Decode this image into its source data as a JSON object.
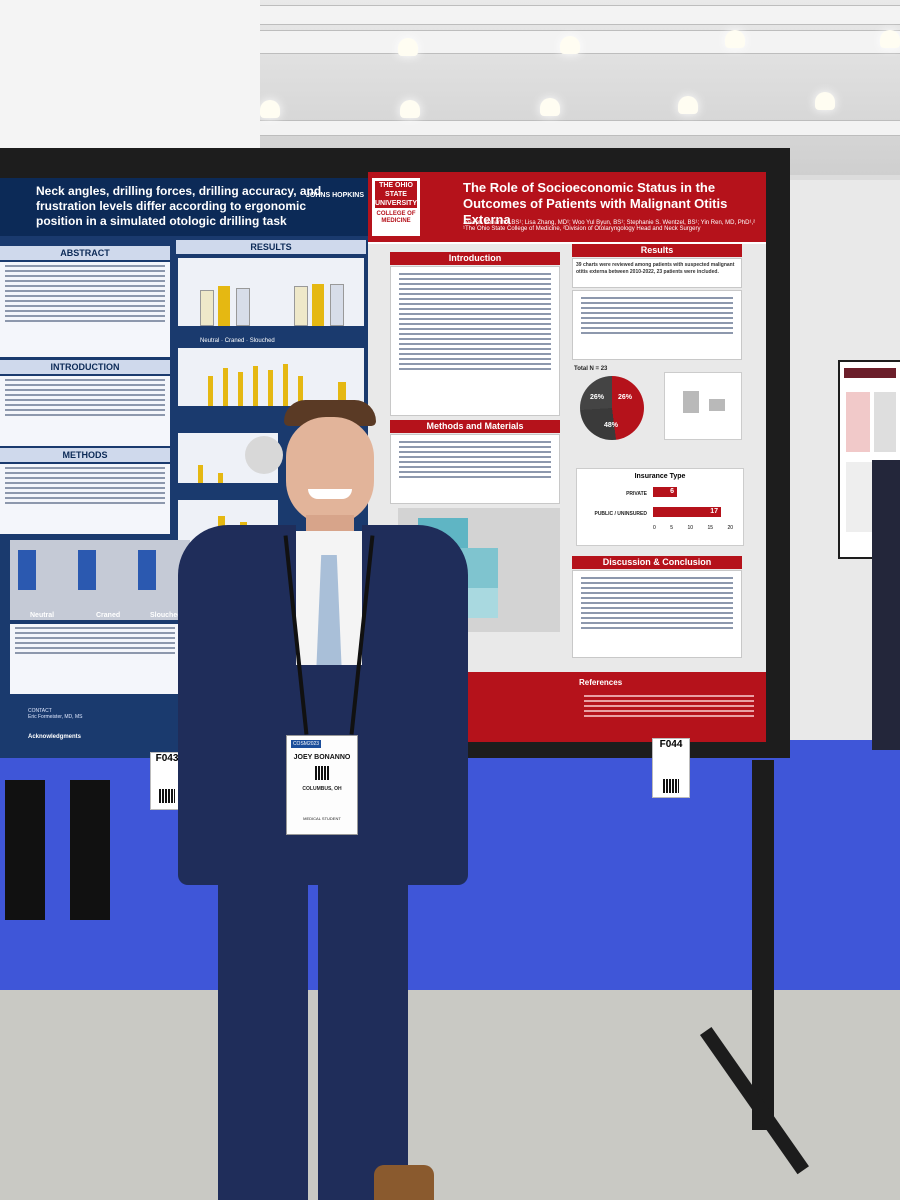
{
  "scene": {
    "description_colors": {
      "carpet": "#3f56d8",
      "poster_red": "#b5121b",
      "poster_blue": "#1a3a6e"
    }
  },
  "left_poster": {
    "title": "Neck angles, drilling forces, drilling accuracy, and frustration levels differ according to ergonomic position in a simulated otologic drilling task",
    "institution": "JOHNS HOPKINS",
    "section_abstract": "ABSTRACT",
    "section_results": "RESULTS",
    "section_introduction": "INTRODUCTION",
    "section_methods": "METHODS",
    "legend": [
      "Neutral",
      "Craned",
      "Slouched"
    ],
    "photo_labels": [
      "Neutral",
      "Craned",
      "Slouched"
    ],
    "contact_label": "CONTACT",
    "contact_name": "Eric Formeister, MD, MS",
    "acknowledgments_label": "Acknowledgments",
    "tag": "F043"
  },
  "right_poster": {
    "title": "The Role of Socioeconomic Status in the Outcomes of Patients with Malignant Otitis Externa",
    "authors": "Joseph Bonanno, BS¹; Lisa Zhang, MD¹; Woo Yul Byun, BS¹; Stephanie S. Wentzel, BS¹; Yin Ren, MD, PhD¹,²",
    "affiliation": "¹The Ohio State College of Medicine, ²Division of Otolaryngology Head and Neck Surgery",
    "logo_text": "THE OHIO STATE UNIVERSITY",
    "logo_sub": "COLLEGE OF MEDICINE",
    "section_introduction": "Introduction",
    "section_results": "Results",
    "section_methods": "Methods and Materials",
    "section_discussion": "Discussion & Conclusion",
    "section_references": "References",
    "results_headline": "39 charts were reviewed among patients with suspected malignant otitis externa between 2010-2022, 23 patients were included.",
    "total_label": "Total N = 23",
    "pie_values": [
      "26%",
      "26%",
      "48%"
    ],
    "insurance_title": "Insurance Type",
    "insurance_rows": [
      {
        "label": "PRIVATE",
        "value": 6
      },
      {
        "label": "PUBLIC / UNINSURED",
        "value": 17
      }
    ],
    "insurance_axis": [
      "0",
      "5",
      "10",
      "15",
      "20"
    ],
    "tag": "F044"
  },
  "badge": {
    "event": "COSM2023",
    "name": "JOEY BONANNO",
    "city": "COLUMBUS, OH",
    "role": "MEDICAL STUDENT"
  }
}
